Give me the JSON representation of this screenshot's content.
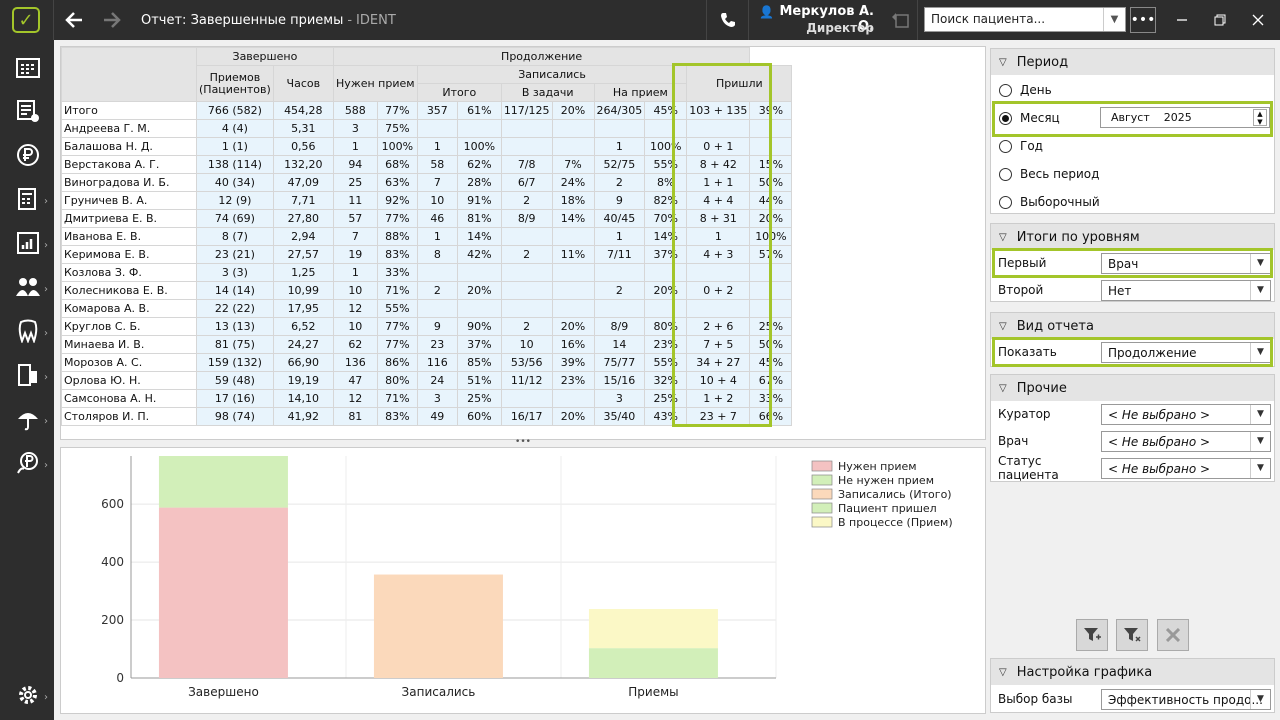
{
  "titlebar": {
    "title": "Отчет: Завершенные приемы",
    "app": "IDENT",
    "user_name": "Меркулов А. О.",
    "user_role": "Директор",
    "search_placeholder": "Поиск пациента...",
    "more": "•••"
  },
  "table": {
    "groups": {
      "completed": "Завершено",
      "continuation": "Продолжение",
      "signed_up": "Записались",
      "came": "Пришли"
    },
    "headers": {
      "appointments": "Приемов (Пациентов)",
      "hours": "Часов",
      "need": "Нужен прием",
      "total": "Итого",
      "tasks": "В задачи",
      "to_appt": "На прием"
    },
    "rows": [
      {
        "name": "Итого",
        "appts": "766 (582)",
        "hours": "454,28",
        "need": "588",
        "need_pct": "77%",
        "tot": "357",
        "tot_pct": "61%",
        "task": "117/125",
        "task_pct": "20%",
        "appt": "264/305",
        "appt_pct": "45%",
        "came": "103 + 135",
        "came_pct": "39%"
      },
      {
        "name": "Андреева Г. М.",
        "appts": "4 (4)",
        "hours": "5,31",
        "need": "3",
        "need_pct": "75%",
        "tot": "",
        "tot_pct": "",
        "task": "",
        "task_pct": "",
        "appt": "",
        "appt_pct": "",
        "came": "",
        "came_pct": ""
      },
      {
        "name": "Балашова Н. Д.",
        "appts": "1 (1)",
        "hours": "0,56",
        "need": "1",
        "need_pct": "100%",
        "tot": "1",
        "tot_pct": "100%",
        "task": "",
        "task_pct": "",
        "appt": "1",
        "appt_pct": "100%",
        "came": "0 + 1",
        "came_pct": ""
      },
      {
        "name": "Верстакова А. Г.",
        "appts": "138 (114)",
        "hours": "132,20",
        "need": "94",
        "need_pct": "68%",
        "tot": "58",
        "tot_pct": "62%",
        "task": "7/8",
        "task_pct": "7%",
        "appt": "52/75",
        "appt_pct": "55%",
        "came": "8 + 42",
        "came_pct": "15%"
      },
      {
        "name": "Виноградова И. Б.",
        "appts": "40 (34)",
        "hours": "47,09",
        "need": "25",
        "need_pct": "63%",
        "tot": "7",
        "tot_pct": "28%",
        "task": "6/7",
        "task_pct": "24%",
        "appt": "2",
        "appt_pct": "8%",
        "came": "1 + 1",
        "came_pct": "50%"
      },
      {
        "name": "Груничев В. А.",
        "appts": "12 (9)",
        "hours": "7,71",
        "need": "11",
        "need_pct": "92%",
        "tot": "10",
        "tot_pct": "91%",
        "task": "2",
        "task_pct": "18%",
        "appt": "9",
        "appt_pct": "82%",
        "came": "4 + 4",
        "came_pct": "44%"
      },
      {
        "name": "Дмитриева Е. В.",
        "appts": "74 (69)",
        "hours": "27,80",
        "need": "57",
        "need_pct": "77%",
        "tot": "46",
        "tot_pct": "81%",
        "task": "8/9",
        "task_pct": "14%",
        "appt": "40/45",
        "appt_pct": "70%",
        "came": "8 + 31",
        "came_pct": "20%"
      },
      {
        "name": "Иванова Е. В.",
        "appts": "8 (7)",
        "hours": "2,94",
        "need": "7",
        "need_pct": "88%",
        "tot": "1",
        "tot_pct": "14%",
        "task": "",
        "task_pct": "",
        "appt": "1",
        "appt_pct": "14%",
        "came": "1",
        "came_pct": "100%"
      },
      {
        "name": "Керимова Е. В.",
        "appts": "23 (21)",
        "hours": "27,57",
        "need": "19",
        "need_pct": "83%",
        "tot": "8",
        "tot_pct": "42%",
        "task": "2",
        "task_pct": "11%",
        "appt": "7/11",
        "appt_pct": "37%",
        "came": "4 + 3",
        "came_pct": "57%"
      },
      {
        "name": "Козлова З. Ф.",
        "appts": "3 (3)",
        "hours": "1,25",
        "need": "1",
        "need_pct": "33%",
        "tot": "",
        "tot_pct": "",
        "task": "",
        "task_pct": "",
        "appt": "",
        "appt_pct": "",
        "came": "",
        "came_pct": ""
      },
      {
        "name": "Колесникова Е. В.",
        "appts": "14 (14)",
        "hours": "10,99",
        "need": "10",
        "need_pct": "71%",
        "tot": "2",
        "tot_pct": "20%",
        "task": "",
        "task_pct": "",
        "appt": "2",
        "appt_pct": "20%",
        "came": "0 + 2",
        "came_pct": ""
      },
      {
        "name": "Комарова А. В.",
        "appts": "22 (22)",
        "hours": "17,95",
        "need": "12",
        "need_pct": "55%",
        "tot": "",
        "tot_pct": "",
        "task": "",
        "task_pct": "",
        "appt": "",
        "appt_pct": "",
        "came": "",
        "came_pct": ""
      },
      {
        "name": "Круглов С. Б.",
        "appts": "13 (13)",
        "hours": "6,52",
        "need": "10",
        "need_pct": "77%",
        "tot": "9",
        "tot_pct": "90%",
        "task": "2",
        "task_pct": "20%",
        "appt": "8/9",
        "appt_pct": "80%",
        "came": "2 + 6",
        "came_pct": "25%"
      },
      {
        "name": "Минаева И. В.",
        "appts": "81 (75)",
        "hours": "24,27",
        "need": "62",
        "need_pct": "77%",
        "tot": "23",
        "tot_pct": "37%",
        "task": "10",
        "task_pct": "16%",
        "appt": "14",
        "appt_pct": "23%",
        "came": "7 + 5",
        "came_pct": "50%"
      },
      {
        "name": "Морозов А. С.",
        "appts": "159 (132)",
        "hours": "66,90",
        "need": "136",
        "need_pct": "86%",
        "tot": "116",
        "tot_pct": "85%",
        "task": "53/56",
        "task_pct": "39%",
        "appt": "75/77",
        "appt_pct": "55%",
        "came": "34 + 27",
        "came_pct": "45%"
      },
      {
        "name": "Орлова Ю. Н.",
        "appts": "59 (48)",
        "hours": "19,19",
        "need": "47",
        "need_pct": "80%",
        "tot": "24",
        "tot_pct": "51%",
        "task": "11/12",
        "task_pct": "23%",
        "appt": "15/16",
        "appt_pct": "32%",
        "came": "10 + 4",
        "came_pct": "67%"
      },
      {
        "name": "Самсонова А. Н.",
        "appts": "17 (16)",
        "hours": "14,10",
        "need": "12",
        "need_pct": "71%",
        "tot": "3",
        "tot_pct": "25%",
        "task": "",
        "task_pct": "",
        "appt": "3",
        "appt_pct": "25%",
        "came": "1 + 2",
        "came_pct": "33%"
      },
      {
        "name": "Столяров И. П.",
        "appts": "98 (74)",
        "hours": "41,92",
        "need": "81",
        "need_pct": "83%",
        "tot": "49",
        "tot_pct": "60%",
        "task": "16/17",
        "task_pct": "20%",
        "appt": "35/40",
        "appt_pct": "43%",
        "came": "23 + 7",
        "came_pct": "66%"
      }
    ]
  },
  "chart_data": {
    "type": "bar",
    "stacked": true,
    "categories": [
      "Завершено",
      "Записались",
      "Приемы"
    ],
    "series": [
      {
        "name": "Нужен прием",
        "color": "#f4c2c2",
        "values": [
          588,
          0,
          0
        ]
      },
      {
        "name": "Не нужен прием",
        "color": "#d2efb9",
        "values": [
          178,
          0,
          0
        ]
      },
      {
        "name": "Записались (Итого)",
        "color": "#fbd9bb",
        "values": [
          0,
          357,
          0
        ]
      },
      {
        "name": "Пациент пришел",
        "color": "#d2efb9",
        "values": [
          0,
          0,
          103
        ]
      },
      {
        "name": "В процессе (Прием)",
        "color": "#fbf8c6",
        "values": [
          0,
          0,
          135
        ]
      }
    ],
    "y_ticks": [
      "0",
      "200",
      "400",
      "600"
    ],
    "ylim": [
      0,
      766
    ],
    "legend_position": "top-right"
  },
  "right": {
    "period": {
      "title": "Период",
      "options": [
        "День",
        "Месяц",
        "Год",
        "Весь период",
        "Выборочный"
      ],
      "selected": 1,
      "month": "Август",
      "year": "2025"
    },
    "levels": {
      "title": "Итоги по уровням",
      "first_label": "Первый",
      "first_value": "Врач",
      "second_label": "Второй",
      "second_value": "Нет"
    },
    "view": {
      "title": "Вид отчета",
      "show_label": "Показать",
      "show_value": "Продолжение"
    },
    "other": {
      "title": "Прочие",
      "curator_label": "Куратор",
      "curator_value": "< Не выбрано >",
      "doctor_label": "Врач",
      "doctor_value": "< Не выбрано >",
      "status_label": "Статус пациента",
      "status_value": "< Не выбрано >"
    },
    "chart_settings": {
      "title": "Настройка графика",
      "base_label": "Выбор базы",
      "base_value": "Эффективность продо..."
    }
  }
}
